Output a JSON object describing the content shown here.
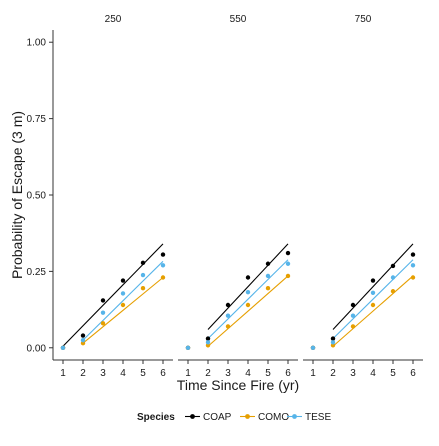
{
  "chart_data": {
    "type": "scatter",
    "title": "",
    "xlabel": "Time Since Fire (yr)",
    "ylabel": "Probability of Escape (3 m)",
    "xlim": [
      0.5,
      6.5
    ],
    "ylim": [
      -0.04,
      1.04
    ],
    "x_ticks": [
      "1",
      "2",
      "3",
      "4",
      "5",
      "6"
    ],
    "y_ticks": [
      "0.00",
      "0.25",
      "0.50",
      "0.75",
      "1.00"
    ],
    "legend": {
      "title": "Species",
      "position": "bottom"
    },
    "panels": [
      {
        "label": "250",
        "series": [
          {
            "name": "COAP",
            "color": "#000000",
            "x": [
              1,
              2,
              3,
              4,
              5,
              6
            ],
            "y": [
              0.0,
              0.04,
              0.155,
              0.22,
              0.278,
              0.305
            ],
            "fit": {
              "x": [
                1,
                6
              ],
              "y": [
                0.005,
                0.34
              ]
            }
          },
          {
            "name": "COMO",
            "color": "#E69F00",
            "x": [
              1,
              2,
              3,
              4,
              5,
              6
            ],
            "y": [
              0.0,
              0.015,
              0.08,
              0.14,
              0.195,
              0.23
            ],
            "fit": {
              "x": [
                2,
                6
              ],
              "y": [
                0.015,
                0.23
              ]
            }
          },
          {
            "name": "TESE",
            "color": "#56B4E9",
            "x": [
              1,
              2,
              3,
              4,
              5,
              6
            ],
            "y": [
              0.0,
              0.025,
              0.115,
              0.178,
              0.238,
              0.27
            ],
            "fit": {
              "x": [
                2,
                6
              ],
              "y": [
                0.025,
                0.283
              ]
            }
          }
        ]
      },
      {
        "label": "550",
        "series": [
          {
            "name": "COAP",
            "color": "#000000",
            "x": [
              1,
              2,
              3,
              4,
              5,
              6
            ],
            "y": [
              0.0,
              0.03,
              0.14,
              0.23,
              0.275,
              0.31
            ],
            "fit": {
              "x": [
                2,
                6
              ],
              "y": [
                0.06,
                0.34
              ]
            }
          },
          {
            "name": "COMO",
            "color": "#E69F00",
            "x": [
              1,
              2,
              3,
              4,
              5,
              6
            ],
            "y": [
              0.0,
              0.008,
              0.07,
              0.14,
              0.195,
              0.235
            ],
            "fit": {
              "x": [
                2,
                6
              ],
              "y": [
                0.005,
                0.235
              ]
            }
          },
          {
            "name": "TESE",
            "color": "#56B4E9",
            "x": [
              1,
              2,
              3,
              4,
              5,
              6
            ],
            "y": [
              0.0,
              0.018,
              0.105,
              0.182,
              0.235,
              0.275
            ],
            "fit": {
              "x": [
                2,
                6
              ],
              "y": [
                0.03,
                0.288
              ]
            }
          }
        ]
      },
      {
        "label": "750",
        "series": [
          {
            "name": "COAP",
            "color": "#000000",
            "x": [
              1,
              2,
              3,
              4,
              5,
              6
            ],
            "y": [
              0.0,
              0.03,
              0.14,
              0.22,
              0.268,
              0.305
            ],
            "fit": {
              "x": [
                2,
                6
              ],
              "y": [
                0.06,
                0.34
              ]
            }
          },
          {
            "name": "COMO",
            "color": "#E69F00",
            "x": [
              1,
              2,
              3,
              4,
              5,
              6
            ],
            "y": [
              0.0,
              0.008,
              0.07,
              0.14,
              0.185,
              0.23
            ],
            "fit": {
              "x": [
                2,
                6
              ],
              "y": [
                0.005,
                0.235
              ]
            }
          },
          {
            "name": "TESE",
            "color": "#56B4E9",
            "x": [
              1,
              2,
              3,
              4,
              5,
              6
            ],
            "y": [
              0.0,
              0.018,
              0.105,
              0.18,
              0.23,
              0.27
            ],
            "fit": {
              "x": [
                2,
                6
              ],
              "y": [
                0.03,
                0.288
              ]
            }
          }
        ]
      }
    ]
  }
}
